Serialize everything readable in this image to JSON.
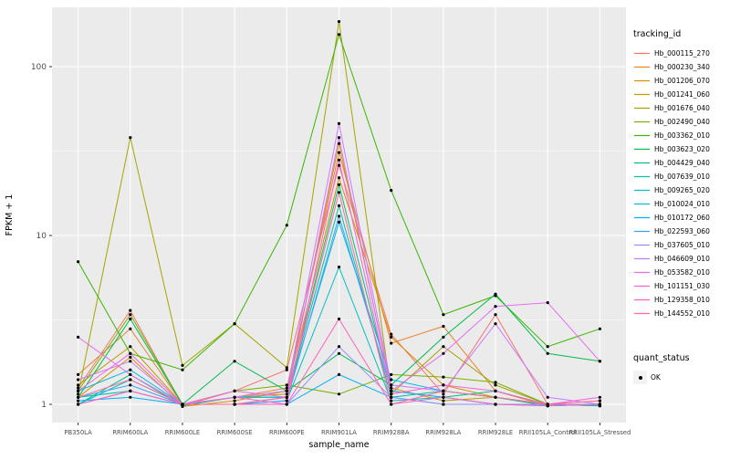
{
  "chart_data": {
    "type": "line",
    "title": "",
    "xlabel": "sample_name",
    "ylabel": "FPKM + 1",
    "y_scale": "log10",
    "y_ticks": [
      1,
      10,
      100
    ],
    "ylim": [
      0.79,
      225
    ],
    "grid": true,
    "panel_bg": "#EBEBEB",
    "grid_color": "#FFFFFF",
    "point_color": "#000000",
    "legend": {
      "title": "tracking_id",
      "position": "right"
    },
    "quant_legend": {
      "title": "quant_status",
      "items": [
        {
          "label": "OK",
          "marker": "point",
          "color": "#000000"
        }
      ]
    },
    "categories": [
      "PB350LA",
      "RRIM600LA",
      "RRIM600LE",
      "RRIM600SE",
      "RRIM600PE",
      "RRIM901LA",
      "RRIM928BA",
      "RRIM928LA",
      "RRIM928LE",
      "RRII105LA_Control",
      "RRII105LA_Stressed"
    ],
    "series": [
      {
        "name": "Hb_000115_270",
        "color": "#F8766D",
        "values": [
          1.25,
          3.6,
          0.98,
          1.2,
          1.6,
          26,
          2.6,
          1.15,
          3.4,
          1.0,
          1.05
        ]
      },
      {
        "name": "Hb_000230_340",
        "color": "#EA8331",
        "values": [
          1.5,
          2.8,
          1.0,
          1.1,
          1.25,
          31,
          2.3,
          2.9,
          1.2,
          0.98,
          1.0
        ]
      },
      {
        "name": "Hb_001206_070",
        "color": "#D89000",
        "values": [
          1.1,
          1.9,
          0.97,
          1.05,
          1.2,
          22,
          2.5,
          1.3,
          1.1,
          1.0,
          0.98
        ]
      },
      {
        "name": "Hb_001241_060",
        "color": "#C09B00",
        "values": [
          1.3,
          2.2,
          1.0,
          1.1,
          1.15,
          35,
          1.25,
          1.05,
          1.1,
          0.98,
          1.0
        ]
      },
      {
        "name": "Hb_001676_040",
        "color": "#A3A500",
        "values": [
          1.15,
          38,
          1.7,
          3.0,
          1.65,
          185,
          1.15,
          2.2,
          1.3,
          1.0,
          1.0
        ]
      },
      {
        "name": "Hb_002490_040",
        "color": "#7CAE00",
        "values": [
          1.2,
          3.4,
          1.0,
          1.2,
          1.3,
          1.15,
          1.5,
          1.45,
          1.35,
          1.0,
          0.98
        ]
      },
      {
        "name": "Hb_003362_010",
        "color": "#39B600",
        "values": [
          7.0,
          2.0,
          1.6,
          3.0,
          11.5,
          155,
          18.5,
          3.4,
          4.4,
          2.2,
          2.8
        ]
      },
      {
        "name": "Hb_003623_020",
        "color": "#00BB4E",
        "values": [
          1.1,
          3.2,
          1.0,
          1.8,
          1.2,
          2.0,
          1.3,
          2.5,
          4.5,
          2.0,
          1.8
        ]
      },
      {
        "name": "Hb_004429_040",
        "color": "#00BF7D",
        "values": [
          1.0,
          1.5,
          0.98,
          1.1,
          1.1,
          20,
          1.2,
          1.1,
          1.2,
          1.0,
          1.0
        ]
      },
      {
        "name": "Hb_007639_010",
        "color": "#00C1A3",
        "values": [
          1.1,
          1.2,
          1.0,
          1.0,
          1.1,
          15,
          1.1,
          1.2,
          1.1,
          0.98,
          1.0
        ]
      },
      {
        "name": "Hb_009265_020",
        "color": "#00BFC4",
        "values": [
          1.0,
          1.4,
          1.0,
          1.0,
          1.05,
          6.5,
          1.05,
          1.1,
          1.0,
          1.0,
          0.98
        ]
      },
      {
        "name": "Hb_010024_010",
        "color": "#00BAE0",
        "values": [
          1.2,
          1.6,
          1.0,
          1.1,
          1.1,
          12,
          1.4,
          1.2,
          1.1,
          1.0,
          1.0
        ]
      },
      {
        "name": "Hb_010172_060",
        "color": "#00B0F6",
        "values": [
          1.05,
          1.1,
          1.0,
          1.0,
          1.0,
          1.5,
          1.1,
          1.0,
          1.0,
          0.98,
          1.0
        ]
      },
      {
        "name": "Hb_022593_060",
        "color": "#35A2FF",
        "values": [
          1.1,
          1.3,
          1.0,
          1.0,
          1.05,
          13,
          1.2,
          1.1,
          1.0,
          1.0,
          1.0
        ]
      },
      {
        "name": "Hb_037605_010",
        "color": "#9590FF",
        "values": [
          1.0,
          1.2,
          1.0,
          1.0,
          1.0,
          2.2,
          1.1,
          1.0,
          1.0,
          1.0,
          1.0
        ]
      },
      {
        "name": "Hb_046609_010",
        "color": "#C77CFF",
        "values": [
          1.4,
          1.8,
          1.0,
          1.1,
          1.2,
          46,
          1.3,
          1.2,
          3.0,
          1.1,
          1.0
        ]
      },
      {
        "name": "Hb_053582_010",
        "color": "#E76BF3",
        "values": [
          2.5,
          1.5,
          1.0,
          1.2,
          1.1,
          38,
          1.2,
          2.0,
          3.8,
          4.0,
          1.8
        ]
      },
      {
        "name": "Hb_101151_030",
        "color": "#FA62DB",
        "values": [
          1.2,
          2.0,
          1.0,
          1.1,
          1.0,
          28,
          1.15,
          1.3,
          1.2,
          1.0,
          1.1
        ]
      },
      {
        "name": "Hb_129358_010",
        "color": "#FF62BC",
        "values": [
          1.0,
          1.2,
          1.0,
          1.0,
          1.0,
          3.2,
          1.0,
          1.1,
          1.0,
          0.98,
          1.0
        ]
      },
      {
        "name": "Hb_144552_010",
        "color": "#FF6A98",
        "values": [
          1.1,
          1.4,
          1.0,
          1.0,
          1.1,
          18,
          1.0,
          1.2,
          1.1,
          1.0,
          1.05
        ]
      }
    ]
  }
}
